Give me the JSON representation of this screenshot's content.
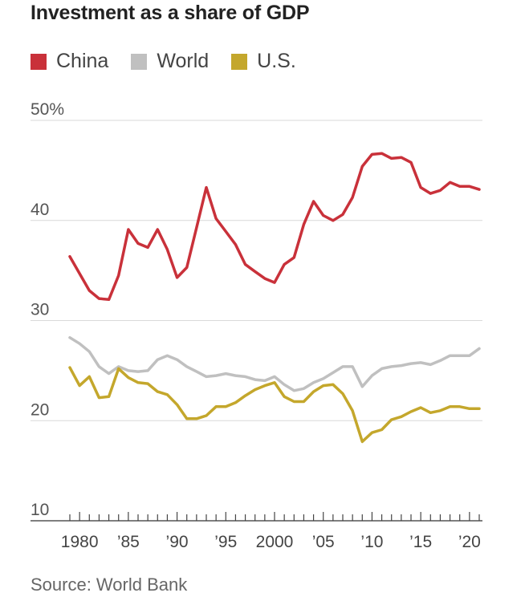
{
  "chart_data": {
    "type": "line",
    "title": "Investment as a share of GDP",
    "source": "Source: World Bank",
    "ylim": [
      10,
      50
    ],
    "y_ticks": [
      {
        "value": 50,
        "label": "50%"
      },
      {
        "value": 40,
        "label": "40"
      },
      {
        "value": 30,
        "label": "30"
      },
      {
        "value": 20,
        "label": "20"
      },
      {
        "value": 10,
        "label": "10"
      }
    ],
    "x_ticks": [
      {
        "year": 1980,
        "label": "1980"
      },
      {
        "year": 1985,
        "label": "’85"
      },
      {
        "year": 1990,
        "label": "’90"
      },
      {
        "year": 1995,
        "label": "’95"
      },
      {
        "year": 2000,
        "label": "2000"
      },
      {
        "year": 2005,
        "label": "’05"
      },
      {
        "year": 2010,
        "label": "’10"
      },
      {
        "year": 2015,
        "label": "’15"
      },
      {
        "year": 2020,
        "label": "’20"
      }
    ],
    "xlim": [
      1979,
      2021
    ],
    "x": [
      1979,
      1980,
      1981,
      1982,
      1983,
      1984,
      1985,
      1986,
      1987,
      1988,
      1989,
      1990,
      1991,
      1992,
      1993,
      1994,
      1995,
      1996,
      1997,
      1998,
      1999,
      2000,
      2001,
      2002,
      2003,
      2004,
      2005,
      2006,
      2007,
      2008,
      2009,
      2010,
      2011,
      2012,
      2013,
      2014,
      2015,
      2016,
      2017,
      2018,
      2019,
      2020,
      2021
    ],
    "series": [
      {
        "name": "China",
        "color": "#c9313a",
        "values": [
          36.4,
          34.7,
          33.0,
          32.2,
          32.1,
          34.5,
          39.1,
          37.7,
          37.3,
          39.1,
          37.1,
          34.3,
          35.3,
          39.3,
          43.3,
          40.2,
          38.9,
          37.6,
          35.6,
          34.9,
          34.2,
          33.8,
          35.6,
          36.3,
          39.6,
          41.9,
          40.5,
          40.0,
          40.6,
          42.3,
          45.4,
          46.6,
          46.7,
          46.2,
          46.3,
          45.8,
          43.3,
          42.7,
          43.0,
          43.8,
          43.4,
          43.4,
          43.1
        ]
      },
      {
        "name": "World",
        "color": "#c0c0c0",
        "values": [
          28.3,
          27.7,
          26.9,
          25.4,
          24.7,
          25.4,
          25.0,
          24.9,
          25.0,
          26.1,
          26.5,
          26.1,
          25.4,
          24.9,
          24.4,
          24.5,
          24.7,
          24.5,
          24.4,
          24.1,
          24.0,
          24.4,
          23.6,
          23.0,
          23.2,
          23.8,
          24.2,
          24.8,
          25.4,
          25.4,
          23.4,
          24.5,
          25.2,
          25.4,
          25.5,
          25.7,
          25.8,
          25.6,
          26.0,
          26.5,
          26.5,
          26.5,
          27.2
        ]
      },
      {
        "name": "U.S.",
        "color": "#c4a72c",
        "values": [
          25.3,
          23.5,
          24.4,
          22.3,
          22.4,
          25.2,
          24.3,
          23.8,
          23.7,
          22.9,
          22.6,
          21.6,
          20.2,
          20.2,
          20.5,
          21.4,
          21.4,
          21.8,
          22.5,
          23.1,
          23.5,
          23.8,
          22.4,
          21.9,
          21.9,
          22.9,
          23.5,
          23.6,
          22.7,
          21.0,
          17.9,
          18.8,
          19.1,
          20.1,
          20.4,
          20.9,
          21.3,
          20.8,
          21.0,
          21.4,
          21.4,
          21.2,
          21.2
        ]
      }
    ]
  }
}
